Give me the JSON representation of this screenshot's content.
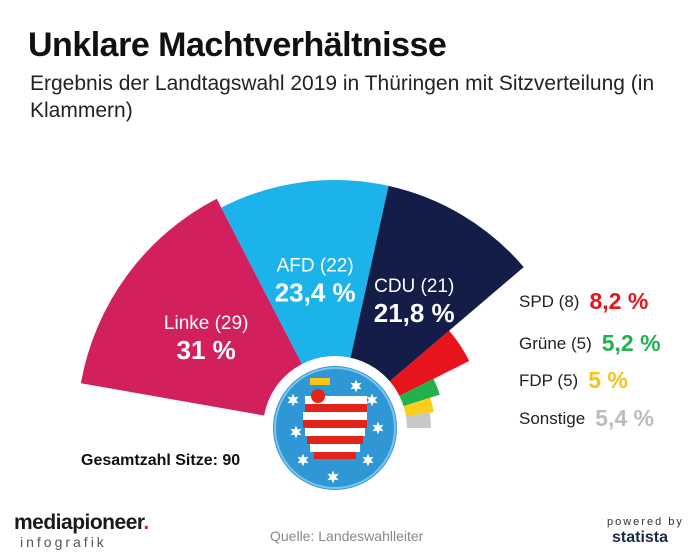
{
  "header": {
    "title": "Unklare Machtverhältnisse",
    "subtitle": "Ergebnis der Landtagswahl 2019 in Thüringen mit Sitzverteilung (in Klammern)"
  },
  "total_seats_label": "Gesamtzahl Sitze: 90",
  "footer": {
    "brand_main": "mediapioneer",
    "brand_dot": ".",
    "brand_sub": "infografik",
    "source": "Quelle: Landeswahlleiter",
    "powered_by": "powered by",
    "statista": "statista"
  },
  "chart_data": {
    "type": "pie",
    "variant": "semicircle",
    "title": "Ergebnis der Landtagswahl 2019 in Thüringen mit Sitzverteilung (in Klammern)",
    "unit": "%",
    "series": [
      {
        "name": "Linke",
        "seats": 29,
        "seat_label": "Linke (29)",
        "value": 31,
        "value_label": "31 %",
        "color": "#d21f5e"
      },
      {
        "name": "AFD",
        "seats": 22,
        "seat_label": "AFD (22)",
        "value": 23.4,
        "value_label": "23,4 %",
        "color": "#1bb3ea"
      },
      {
        "name": "CDU",
        "seats": 21,
        "seat_label": "CDU (21)",
        "value": 21.8,
        "value_label": "21,8 %",
        "color": "#141c48"
      },
      {
        "name": "SPD",
        "seats": 8,
        "seat_label": "SPD (8)",
        "value": 8.2,
        "value_label": "8,2 %",
        "color": "#e8141c",
        "label_color": "#e8141c"
      },
      {
        "name": "Grüne",
        "seats": 5,
        "seat_label": "Grüne (5)",
        "value": 5.2,
        "value_label": "5,2 %",
        "color": "#22b14c",
        "label_color": "#22b14c"
      },
      {
        "name": "FDP",
        "seats": 5,
        "seat_label": "FDP (5)",
        "value": 5,
        "value_label": "5 %",
        "color": "#f7cf1c",
        "label_color": "#f2c51a"
      },
      {
        "name": "Sonstige",
        "seats": null,
        "seat_label": "Sonstige",
        "value": 5.4,
        "value_label": "5,4 %",
        "color": "#c8c8c8",
        "label_color": "#bcbcbc"
      }
    ]
  }
}
